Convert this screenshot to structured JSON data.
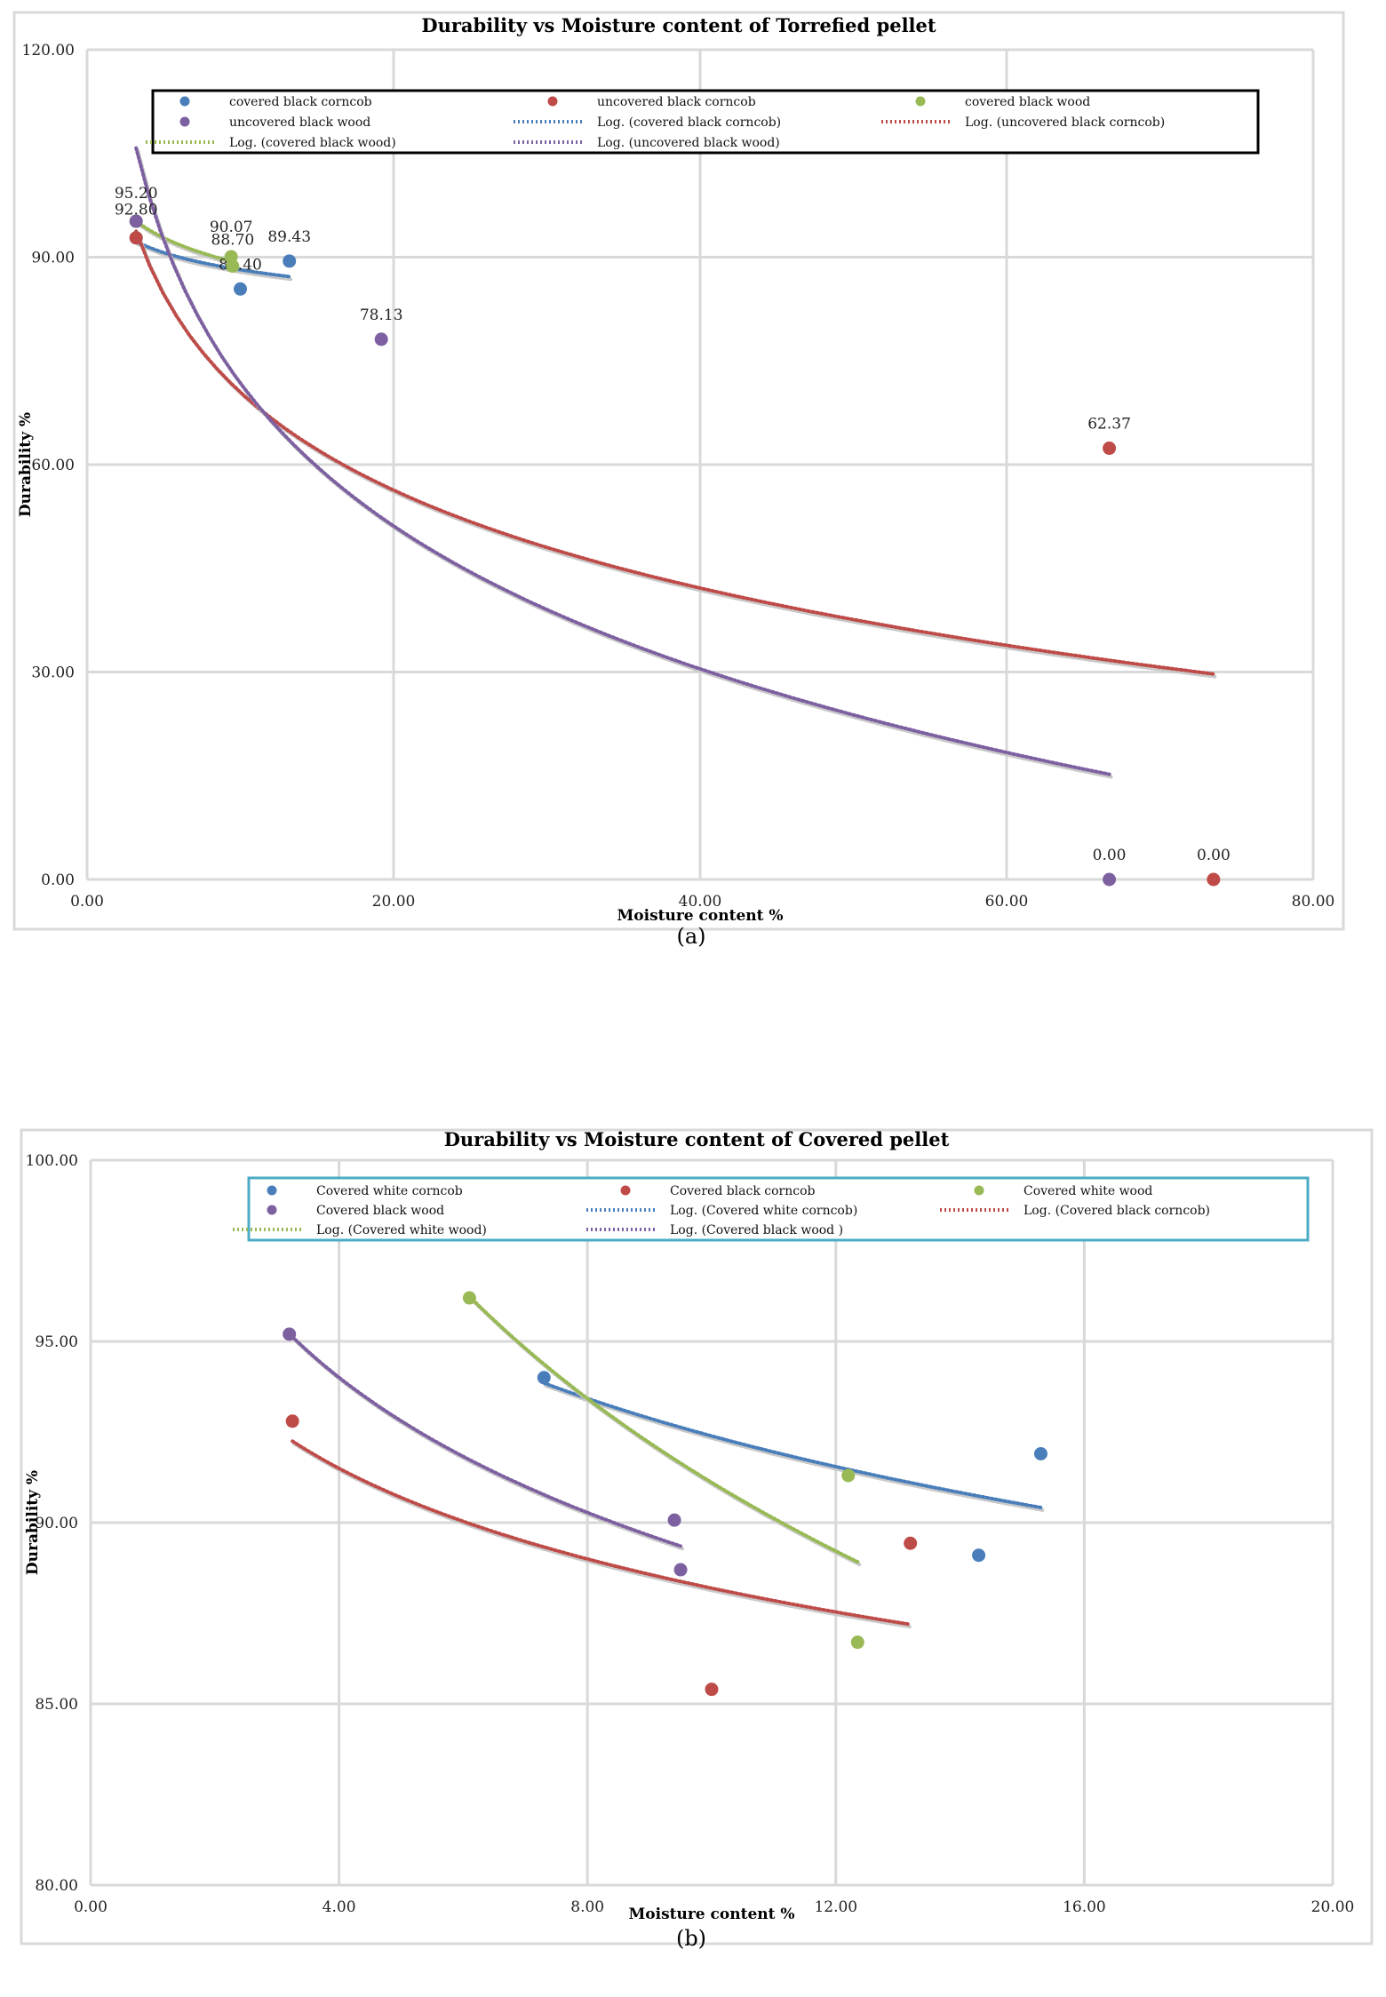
{
  "charts": [
    {
      "id": "a",
      "caption": "(a)",
      "chart_data": {
        "type": "scatter",
        "title": "Durability vs Moisture content of Torrefied pellet",
        "xlabel": "Moisture content %",
        "ylabel": "Durability %",
        "xlim": [
          0,
          80
        ],
        "ylim": [
          0,
          120
        ],
        "xticks": [
          "0.00",
          "20.00",
          "40.00",
          "60.00",
          "80.00"
        ],
        "yticks": [
          "0.00",
          "30.00",
          "60.00",
          "90.00",
          "120.00"
        ],
        "xtick_values": [
          0,
          20,
          40,
          60,
          80
        ],
        "ytick_values": [
          0,
          30,
          60,
          90,
          120
        ],
        "grid": true,
        "legend_position": "top",
        "legend_border": "#000000",
        "series": [
          {
            "name": "covered black corncob",
            "color": "#4a7ebb",
            "points": [
              {
                "x": 3.2,
                "y": 92.8
              },
              {
                "x": 10.0,
                "y": 85.4
              },
              {
                "x": 13.2,
                "y": 89.43
              }
            ],
            "labels": [
              "",
              "85.40",
              "89.43"
            ]
          },
          {
            "name": "uncovered black corncob",
            "color": "#be4b48",
            "points": [
              {
                "x": 3.2,
                "y": 92.8
              },
              {
                "x": 66.7,
                "y": 62.37
              },
              {
                "x": 73.5,
                "y": 0.0
              }
            ],
            "labels": [
              "92.80",
              "62.37",
              "0.00"
            ]
          },
          {
            "name": "covered black wood",
            "color": "#98b954",
            "points": [
              {
                "x": 3.2,
                "y": 95.2
              },
              {
                "x": 9.4,
                "y": 90.07
              },
              {
                "x": 9.5,
                "y": 88.7
              }
            ],
            "labels": [
              "",
              "90.07",
              "88.70"
            ]
          },
          {
            "name": "uncovered black wood",
            "color": "#7d60a0",
            "points": [
              {
                "x": 3.2,
                "y": 95.2
              },
              {
                "x": 19.2,
                "y": 78.13
              },
              {
                "x": 66.7,
                "y": 0.0
              }
            ],
            "labels": [
              "95.20",
              "78.13",
              "0.00"
            ]
          }
        ],
        "trendlines": [
          {
            "name": "Log. (covered black corncob)",
            "color": "#4a7ebb",
            "type": "log",
            "x_range": [
              3.2,
              13.2
            ]
          },
          {
            "name": "Log. (uncovered black corncob)",
            "color": "#be4b48",
            "type": "log",
            "x_range": [
              3.2,
              73.5
            ]
          },
          {
            "name": "Log. (covered black wood)",
            "color": "#98b954",
            "type": "log",
            "x_range": [
              3.2,
              9.5
            ]
          },
          {
            "name": "Log. (uncovered black wood)",
            "color": "#7d60a0",
            "type": "log",
            "x_range": [
              3.2,
              66.7
            ]
          }
        ],
        "legend_order": [
          {
            "kind": "series",
            "index": 0
          },
          {
            "kind": "series",
            "index": 1
          },
          {
            "kind": "series",
            "index": 2
          },
          {
            "kind": "series",
            "index": 3
          },
          {
            "kind": "trend",
            "index": 0
          },
          {
            "kind": "trend",
            "index": 1
          },
          {
            "kind": "trend",
            "index": 2
          },
          {
            "kind": "trend",
            "index": 3
          }
        ]
      }
    },
    {
      "id": "b",
      "caption": "(b)",
      "chart_data": {
        "type": "scatter",
        "title": "Durability vs Moisture content of Covered pellet",
        "xlabel": "Moisture content %",
        "ylabel": "Durability %",
        "xlim": [
          0,
          20
        ],
        "ylim": [
          80,
          100
        ],
        "xticks": [
          "0.00",
          "4.00",
          "8.00",
          "12.00",
          "16.00",
          "20.00"
        ],
        "yticks": [
          "80.00",
          "85.00",
          "90.00",
          "95.00",
          "100.00"
        ],
        "xtick_values": [
          0,
          4,
          8,
          12,
          16,
          20
        ],
        "ytick_values": [
          80,
          85,
          90,
          95,
          100
        ],
        "grid": true,
        "legend_position": "top",
        "legend_border": "#4bacc6",
        "series": [
          {
            "name": "Covered white corncob",
            "color": "#4a7ebb",
            "points": [
              {
                "x": 7.3,
                "y": 94.0
              },
              {
                "x": 14.3,
                "y": 89.1
              },
              {
                "x": 15.3,
                "y": 91.9
              }
            ],
            "labels": [
              "",
              "",
              ""
            ]
          },
          {
            "name": "Covered black corncob",
            "color": "#be4b48",
            "points": [
              {
                "x": 3.25,
                "y": 92.8
              },
              {
                "x": 10.0,
                "y": 85.4
              },
              {
                "x": 13.2,
                "y": 89.43
              }
            ],
            "labels": [
              "",
              "",
              ""
            ]
          },
          {
            "name": "Covered white wood",
            "color": "#98b954",
            "points": [
              {
                "x": 6.1,
                "y": 96.2
              },
              {
                "x": 12.2,
                "y": 91.3
              },
              {
                "x": 12.35,
                "y": 86.7
              }
            ],
            "labels": [
              "",
              "",
              ""
            ]
          },
          {
            "name": "Covered black wood",
            "color": "#7d60a0",
            "points": [
              {
                "x": 3.2,
                "y": 95.2
              },
              {
                "x": 9.4,
                "y": 90.07
              },
              {
                "x": 9.5,
                "y": 88.7
              }
            ],
            "labels": [
              "",
              "",
              ""
            ]
          }
        ],
        "trendlines": [
          {
            "name": "Log. (Covered white corncob)",
            "color": "#4a7ebb",
            "type": "log",
            "x_range": [
              7.3,
              15.3
            ]
          },
          {
            "name": "Log. (Covered black corncob)",
            "color": "#be4b48",
            "type": "log",
            "x_range": [
              3.25,
              13.2
            ]
          },
          {
            "name": "Log. (Covered white wood)",
            "color": "#98b954",
            "type": "log",
            "x_range": [
              6.1,
              12.35
            ]
          },
          {
            "name": "Log. (Covered black wood )",
            "color": "#7d60a0",
            "type": "log",
            "x_range": [
              3.2,
              9.5
            ]
          }
        ],
        "legend_order": [
          {
            "kind": "series",
            "index": 0
          },
          {
            "kind": "series",
            "index": 1
          },
          {
            "kind": "series",
            "index": 2
          },
          {
            "kind": "series",
            "index": 3
          },
          {
            "kind": "trend",
            "index": 0
          },
          {
            "kind": "trend",
            "index": 1
          },
          {
            "kind": "trend",
            "index": 2
          },
          {
            "kind": "trend",
            "index": 3
          }
        ]
      }
    }
  ]
}
